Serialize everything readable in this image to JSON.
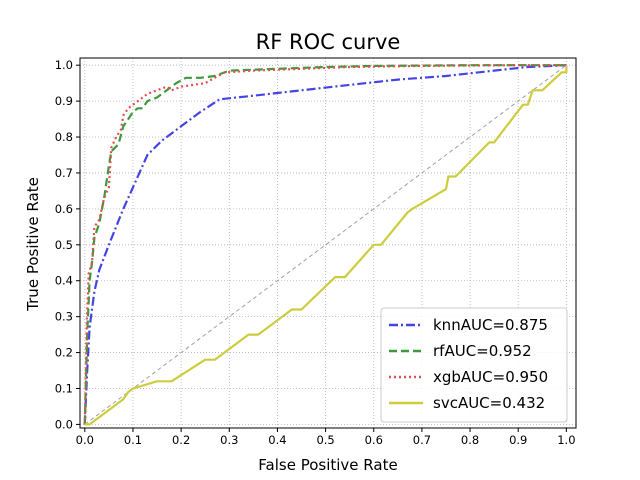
{
  "chart_data": {
    "type": "line",
    "title": "RF ROC curve",
    "xlabel": "False Positive Rate",
    "ylabel": "True Positive Rate",
    "xlim": [
      -0.01,
      1.02
    ],
    "ylim": [
      -0.01,
      1.02
    ],
    "xticks": [
      0.0,
      0.1,
      0.2,
      0.3,
      0.4,
      0.5,
      0.6,
      0.7,
      0.8,
      0.9,
      1.0
    ],
    "yticks": [
      0.0,
      0.1,
      0.2,
      0.3,
      0.4,
      0.5,
      0.6,
      0.7,
      0.8,
      0.9,
      1.0
    ],
    "xtick_labels": [
      "0.0",
      "0.1",
      "0.2",
      "0.3",
      "0.4",
      "0.5",
      "0.6",
      "0.7",
      "0.8",
      "0.9",
      "1.0"
    ],
    "ytick_labels": [
      "0.0",
      "0.1",
      "0.2",
      "0.3",
      "0.4",
      "0.5",
      "0.6",
      "0.7",
      "0.8",
      "0.9",
      "1.0"
    ],
    "grid": true,
    "legend_position": "bottom-right",
    "diagonal": {
      "x": [
        0,
        1
      ],
      "y": [
        0,
        1
      ],
      "color": "#a0a0a0",
      "style": "dashed"
    },
    "series": [
      {
        "name": "knnAUC=0.875",
        "color": "#4444e6",
        "style": "dashdot",
        "x": [
          0.0,
          0.005,
          0.01,
          0.02,
          0.03,
          0.05,
          0.08,
          0.1,
          0.13,
          0.16,
          0.2,
          0.24,
          0.28,
          0.35,
          0.45,
          0.55,
          0.65,
          0.75,
          0.85,
          0.92,
          1.0
        ],
        "y": [
          0.0,
          0.15,
          0.27,
          0.37,
          0.43,
          0.5,
          0.6,
          0.66,
          0.75,
          0.79,
          0.83,
          0.87,
          0.905,
          0.915,
          0.93,
          0.945,
          0.96,
          0.97,
          0.985,
          0.995,
          1.0
        ]
      },
      {
        "name": "rfAUC=0.952",
        "color": "#3c9a3c",
        "style": "dashed",
        "x": [
          0.0,
          0.005,
          0.01,
          0.015,
          0.02,
          0.03,
          0.04,
          0.05,
          0.055,
          0.07,
          0.08,
          0.09,
          0.1,
          0.11,
          0.12,
          0.13,
          0.15,
          0.17,
          0.19,
          0.21,
          0.24,
          0.27,
          0.3,
          0.4,
          0.5,
          0.6,
          0.8,
          1.0
        ],
        "y": [
          0.0,
          0.25,
          0.4,
          0.45,
          0.52,
          0.56,
          0.63,
          0.72,
          0.76,
          0.78,
          0.83,
          0.85,
          0.87,
          0.88,
          0.88,
          0.9,
          0.91,
          0.93,
          0.95,
          0.965,
          0.965,
          0.97,
          0.985,
          0.99,
          0.995,
          0.998,
          1.0,
          1.0
        ]
      },
      {
        "name": "xgbAUC=0.950",
        "color": "#e64d4d",
        "style": "dotted",
        "x": [
          0.0,
          0.004,
          0.008,
          0.015,
          0.02,
          0.03,
          0.04,
          0.05,
          0.055,
          0.065,
          0.075,
          0.08,
          0.09,
          0.1,
          0.11,
          0.13,
          0.15,
          0.17,
          0.18,
          0.2,
          0.25,
          0.29,
          0.35,
          0.45,
          0.55,
          0.7,
          0.9,
          1.0
        ],
        "y": [
          0.0,
          0.28,
          0.42,
          0.45,
          0.55,
          0.57,
          0.63,
          0.66,
          0.77,
          0.8,
          0.82,
          0.86,
          0.88,
          0.89,
          0.9,
          0.92,
          0.93,
          0.94,
          0.93,
          0.94,
          0.95,
          0.98,
          0.985,
          0.99,
          0.995,
          0.998,
          1.0,
          1.0
        ]
      },
      {
        "name": "svcAUC=0.432",
        "color": "#cccc3d",
        "style": "solid",
        "x": [
          0.0,
          0.01,
          0.05,
          0.08,
          0.09,
          0.1,
          0.15,
          0.18,
          0.25,
          0.27,
          0.34,
          0.36,
          0.43,
          0.45,
          0.52,
          0.54,
          0.6,
          0.615,
          0.67,
          0.68,
          0.75,
          0.755,
          0.77,
          0.84,
          0.85,
          0.91,
          0.92,
          0.93,
          0.95,
          0.99,
          1.0,
          1.0
        ],
        "y": [
          0.0,
          0.0,
          0.04,
          0.07,
          0.09,
          0.1,
          0.12,
          0.12,
          0.18,
          0.18,
          0.25,
          0.25,
          0.32,
          0.32,
          0.41,
          0.41,
          0.5,
          0.5,
          0.59,
          0.6,
          0.655,
          0.69,
          0.69,
          0.785,
          0.785,
          0.89,
          0.89,
          0.93,
          0.93,
          0.98,
          0.98,
          1.0
        ]
      }
    ]
  }
}
